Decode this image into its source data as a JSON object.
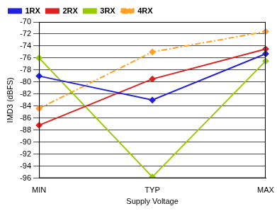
{
  "chart_data": {
    "type": "line",
    "x_label": "Supply Voltage",
    "y_label": "IMD3 (dBFS)",
    "categories": [
      "MIN",
      "TYP",
      "MAX"
    ],
    "series": [
      {
        "name": "1RX",
        "color": "#2222dd",
        "marker": "diamond",
        "line_style": "solid",
        "values": [
          -79,
          -83,
          -75.3
        ]
      },
      {
        "name": "2RX",
        "color": "#dd2222",
        "marker": "diamond",
        "line_style": "solid",
        "values": [
          -87.2,
          -79.5,
          -74.5
        ]
      },
      {
        "name": "3RX",
        "color": "#99cc00",
        "marker": "diamond",
        "line_style": "solid",
        "values": [
          -76,
          -95.8,
          -76.5
        ]
      },
      {
        "name": "4RX",
        "color": "#ffa022",
        "marker": "diamond",
        "line_style": "dashdot",
        "values": [
          -84.4,
          -75,
          -71.6
        ]
      }
    ],
    "ylim": [
      -96,
      -70
    ],
    "yticks": [
      -96,
      -94,
      -92,
      -90,
      -88,
      -86,
      -84,
      -82,
      -80,
      -78,
      -76,
      -74,
      -72,
      -70
    ],
    "grid": true,
    "legend": "top-left"
  }
}
